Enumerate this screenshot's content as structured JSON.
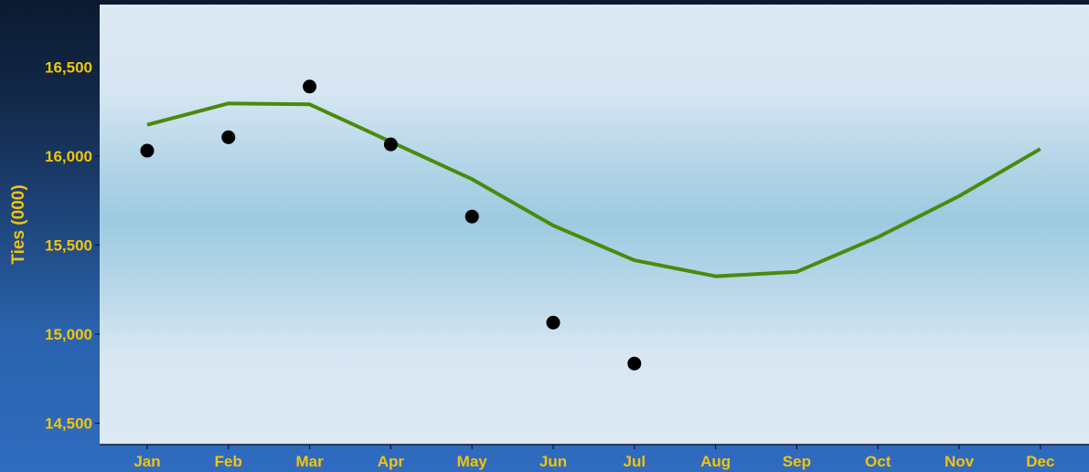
{
  "chart_data": {
    "type": "line",
    "categories": [
      "Jan",
      "Feb",
      "Mar",
      "Apr",
      "May",
      "Jun",
      "Jul",
      "Aug",
      "Sep",
      "Oct",
      "Nov",
      "Dec"
    ],
    "series": [
      {
        "kind": "points",
        "values": [
          16030,
          16105,
          16390,
          16065,
          15660,
          15065,
          14835,
          null,
          null,
          null,
          null,
          null
        ]
      },
      {
        "kind": "line",
        "values": [
          16175,
          16295,
          16290,
          16080,
          15870,
          15610,
          15415,
          15325,
          15350,
          15545,
          15775,
          16040
        ]
      }
    ],
    "title": "",
    "xlabel": "",
    "ylabel": "Ties (000)",
    "ylim": [
      14380,
      16850
    ],
    "yticks": [
      14500,
      15000,
      15500,
      16000,
      16500
    ],
    "ytick_labels": [
      "14,500",
      "15,000",
      "15,500",
      "16,000",
      "16,500"
    ],
    "colors": {
      "line": "#4a8a0c",
      "points": "#000000",
      "text": "#f2c40c"
    }
  }
}
